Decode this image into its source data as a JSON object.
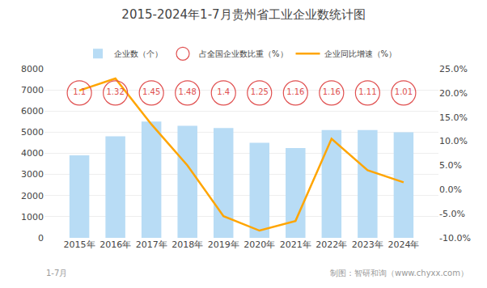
{
  "chart_data": {
    "type": "bar",
    "title": "2015-2024年1-7月贵州省工业企业数统计图",
    "categories": [
      "2015年",
      "2016年",
      "2017年",
      "2018年",
      "2019年",
      "2020年",
      "2021年",
      "2022年",
      "2023年",
      "2024年"
    ],
    "series": [
      {
        "name": "企业数（个）",
        "type": "bar",
        "color": "#b8dcf5",
        "values": [
          3900,
          4800,
          5500,
          5300,
          5200,
          4500,
          4250,
          5100,
          5100,
          5000
        ]
      },
      {
        "name": "占全国企业数比重（%）",
        "type": "scatter",
        "marker": "circle",
        "color": "#e05050",
        "data_labels": true,
        "values": [
          1.1,
          1.32,
          1.45,
          1.48,
          1.4,
          1.25,
          1.16,
          1.16,
          1.11,
          1.01
        ]
      },
      {
        "name": "企业同比增速（%）",
        "type": "line",
        "color": "#FFA500",
        "axis": "y2",
        "values": [
          20.5,
          23.0,
          13.5,
          5.0,
          -5.5,
          -8.5,
          -6.5,
          10.5,
          4.0,
          1.5
        ]
      }
    ],
    "ylim": [
      0,
      8000
    ],
    "yticks": [
      0,
      1000,
      2000,
      3000,
      4000,
      5000,
      6000,
      7000,
      8000
    ],
    "y2lim": [
      -10,
      25
    ],
    "y2ticks": [
      {
        "value": -10,
        "label": "-10.0%"
      },
      {
        "value": -5,
        "label": "-5.0%"
      },
      {
        "value": 0,
        "label": "0.0%"
      },
      {
        "value": 5,
        "label": "5.0%"
      },
      {
        "value": 10,
        "label": "10.0%"
      },
      {
        "value": 15,
        "label": "15.0%"
      },
      {
        "value": 20,
        "label": "20.0%"
      },
      {
        "value": 25,
        "label": "25.0%"
      }
    ],
    "grid": true,
    "legend": "top",
    "annotations": [
      "制图：智研和询（www.chyxx.com）",
      "1-7月"
    ]
  }
}
